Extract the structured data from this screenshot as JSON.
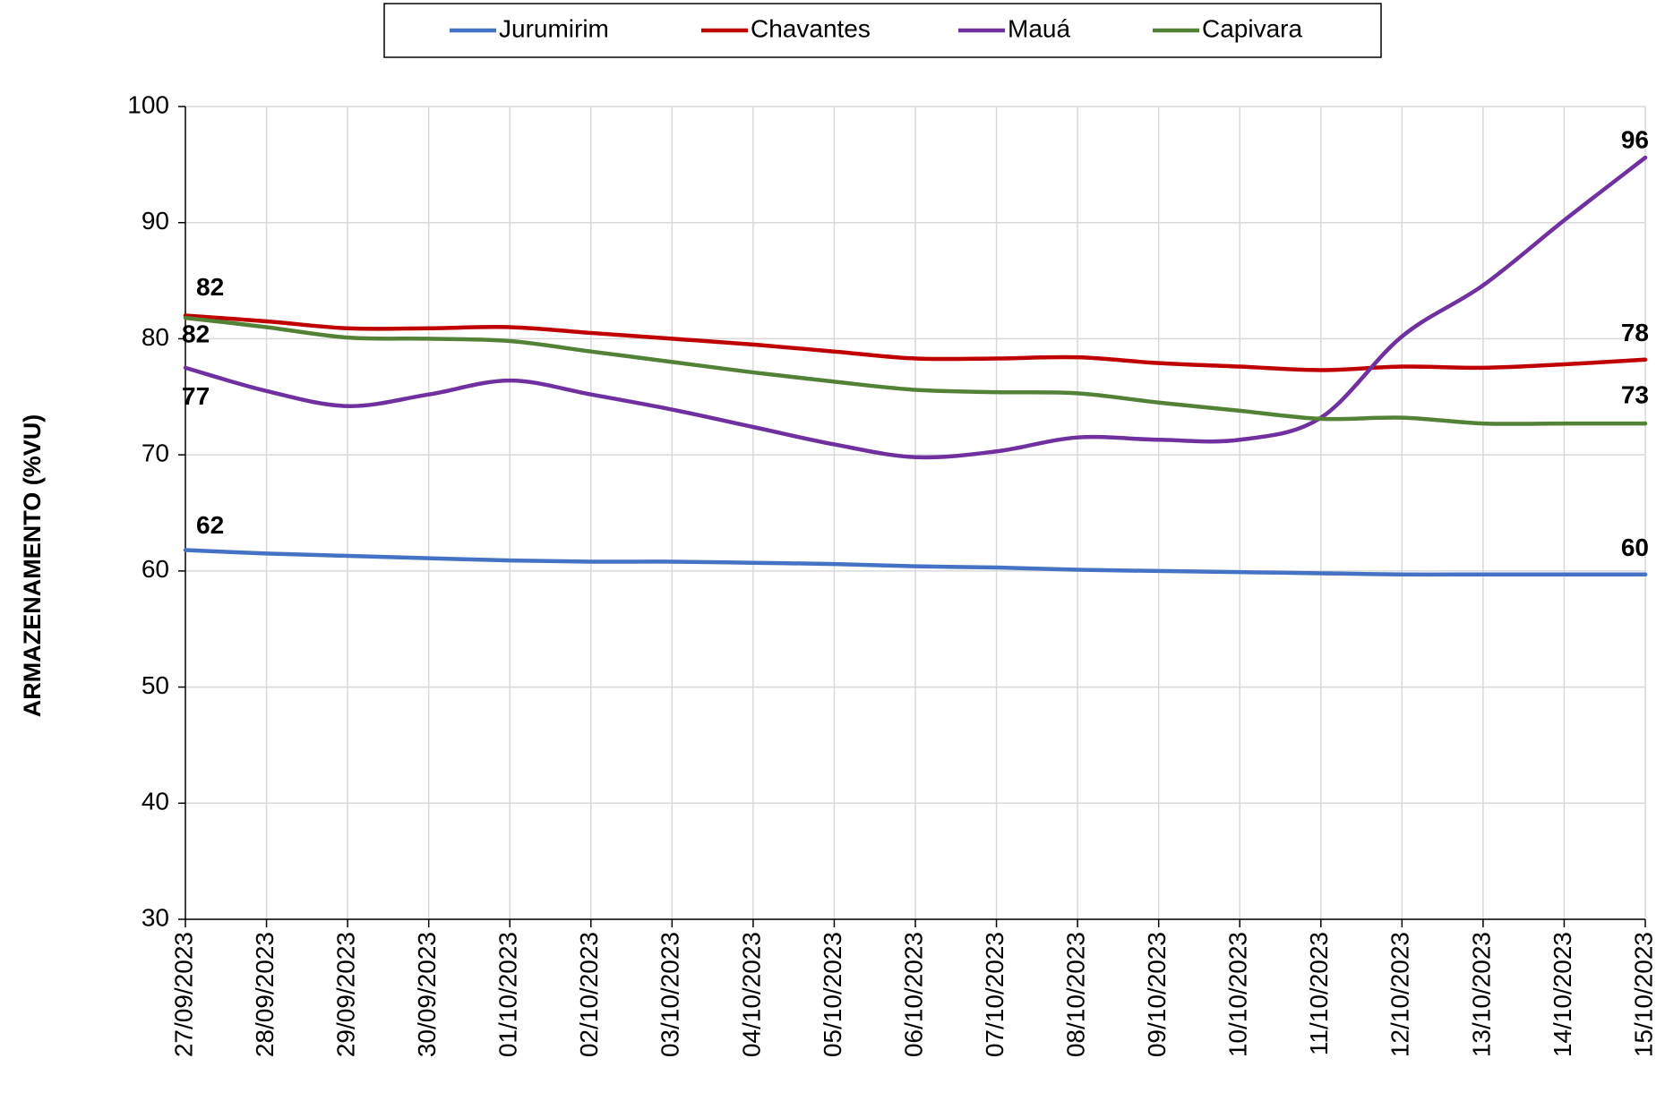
{
  "chart_data": {
    "type": "line",
    "y_label": "ARMAZENAMENTO (%VU)",
    "categories": [
      "27/09/2023",
      "28/09/2023",
      "29/09/2023",
      "30/09/2023",
      "01/10/2023",
      "02/10/2023",
      "03/10/2023",
      "04/10/2023",
      "05/10/2023",
      "06/10/2023",
      "07/10/2023",
      "08/10/2023",
      "09/10/2023",
      "10/10/2023",
      "11/10/2023",
      "12/10/2023",
      "13/10/2023",
      "14/10/2023",
      "15/10/2023"
    ],
    "series": [
      {
        "name": "Jurumirim",
        "color": "#4472c4",
        "values": [
          61.8,
          61.5,
          61.3,
          61.1,
          60.9,
          60.8,
          60.8,
          60.7,
          60.6,
          60.4,
          60.3,
          60.1,
          60.0,
          59.9,
          59.8,
          59.7,
          59.7,
          59.7,
          59.7
        ],
        "value_labels": [
          "62",
          null,
          null,
          null,
          null,
          null,
          null,
          null,
          null,
          null,
          null,
          null,
          null,
          null,
          null,
          null,
          null,
          null,
          "60"
        ]
      },
      {
        "name": "Chavantes",
        "color": "#c00000",
        "values": [
          82.0,
          81.5,
          80.9,
          80.9,
          81.0,
          80.5,
          80.0,
          79.5,
          78.9,
          78.3,
          78.3,
          78.4,
          77.9,
          77.6,
          77.3,
          77.6,
          77.5,
          77.8,
          78.2
        ],
        "value_labels": [
          "82",
          null,
          null,
          null,
          null,
          null,
          null,
          null,
          null,
          null,
          null,
          null,
          null,
          null,
          null,
          null,
          null,
          null,
          "78"
        ]
      },
      {
        "name": "Mauá",
        "color": "#7030a0",
        "values": [
          77.5,
          75.5,
          74.2,
          75.2,
          76.4,
          75.2,
          73.9,
          72.4,
          70.9,
          69.8,
          70.3,
          71.5,
          71.3,
          71.3,
          73.2,
          80.2,
          84.6,
          90.2,
          95.6
        ],
        "value_labels": [
          "77",
          null,
          null,
          null,
          null,
          null,
          null,
          null,
          null,
          null,
          null,
          null,
          null,
          null,
          null,
          null,
          null,
          null,
          "96"
        ]
      },
      {
        "name": "Capivara",
        "color": "#538135",
        "values": [
          81.8,
          81.0,
          80.1,
          80.0,
          79.8,
          78.9,
          78.0,
          77.1,
          76.3,
          75.6,
          75.4,
          75.3,
          74.5,
          73.8,
          73.1,
          73.2,
          72.7,
          72.7,
          72.7
        ],
        "value_labels": [
          "82",
          null,
          null,
          null,
          null,
          null,
          null,
          null,
          null,
          null,
          null,
          null,
          null,
          null,
          null,
          null,
          null,
          null,
          "73"
        ]
      }
    ],
    "ylim": [
      30,
      100
    ],
    "yticks": [
      30,
      40,
      50,
      60,
      70,
      80,
      90,
      100
    ],
    "grid": true,
    "legend": "top"
  }
}
